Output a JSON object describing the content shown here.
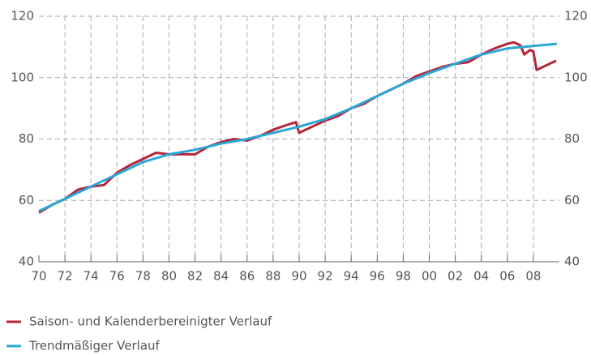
{
  "chart_data": {
    "type": "line",
    "xlim": [
      1970,
      2010
    ],
    "xticks": [
      {
        "value": 1970,
        "label": "70"
      },
      {
        "value": 1972,
        "label": "72"
      },
      {
        "value": 1974,
        "label": "74"
      },
      {
        "value": 1976,
        "label": "76"
      },
      {
        "value": 1978,
        "label": "78"
      },
      {
        "value": 1980,
        "label": "80"
      },
      {
        "value": 1982,
        "label": "82"
      },
      {
        "value": 1984,
        "label": "84"
      },
      {
        "value": 1986,
        "label": "86"
      },
      {
        "value": 1988,
        "label": "88"
      },
      {
        "value": 1990,
        "label": "90"
      },
      {
        "value": 1992,
        "label": "92"
      },
      {
        "value": 1994,
        "label": "94"
      },
      {
        "value": 1996,
        "label": "96"
      },
      {
        "value": 1998,
        "label": "98"
      },
      {
        "value": 2000,
        "label": "00"
      },
      {
        "value": 2002,
        "label": "02"
      },
      {
        "value": 2004,
        "label": "04"
      },
      {
        "value": 2006,
        "label": "06"
      },
      {
        "value": 2008,
        "label": "08"
      }
    ],
    "ylim": [
      40,
      120
    ],
    "yticks": [
      40,
      60,
      80,
      100,
      120
    ],
    "grid": true,
    "series": [
      {
        "name": "Saison- und Kalenderbereinigter Verlauf",
        "color": "#b5253a",
        "x": [
          1970,
          1971,
          1972,
          1973,
          1974,
          1975,
          1976,
          1977,
          1978,
          1979,
          1980,
          1981,
          1982,
          1983,
          1984,
          1985,
          1986,
          1987,
          1988,
          1989,
          1989.75,
          1990,
          1991,
          1992,
          1993,
          1994,
          1995,
          1996,
          1997,
          1998,
          1999,
          2000,
          2001,
          2002,
          2003,
          2004,
          2005,
          2006,
          2006.5,
          2007,
          2007.3,
          2007.75,
          2008,
          2008.25,
          2008.75,
          2009.25,
          2009.75
        ],
        "values": [
          56,
          58.5,
          60.5,
          63.5,
          64.5,
          65,
          69,
          71.5,
          73.5,
          75.5,
          75,
          75,
          75,
          77.5,
          79,
          80,
          79.5,
          81,
          83,
          84.5,
          85.5,
          82,
          84,
          86,
          87.5,
          90,
          91.5,
          94,
          96,
          98,
          100.5,
          102,
          103.5,
          104.5,
          105,
          107.5,
          109.5,
          111,
          111.5,
          110.5,
          107.5,
          109,
          108.5,
          102.5,
          103.5,
          104.5,
          105.5
        ]
      },
      {
        "name": "Trendmäßiger Verlauf",
        "color": "#2ba6d6",
        "x": [
          1970,
          1972,
          1974,
          1976,
          1978,
          1980,
          1982,
          1984,
          1986,
          1988,
          1990,
          1992,
          1994,
          1996,
          1998,
          2000,
          2002,
          2004,
          2006,
          2008,
          2009.8
        ],
        "values": [
          56.5,
          60.5,
          64.5,
          68.5,
          72.5,
          75,
          76.5,
          78.5,
          80,
          82,
          84,
          86.5,
          90,
          94,
          98,
          101.5,
          104.5,
          107.5,
          109.5,
          110.3,
          111
        ]
      }
    ]
  }
}
